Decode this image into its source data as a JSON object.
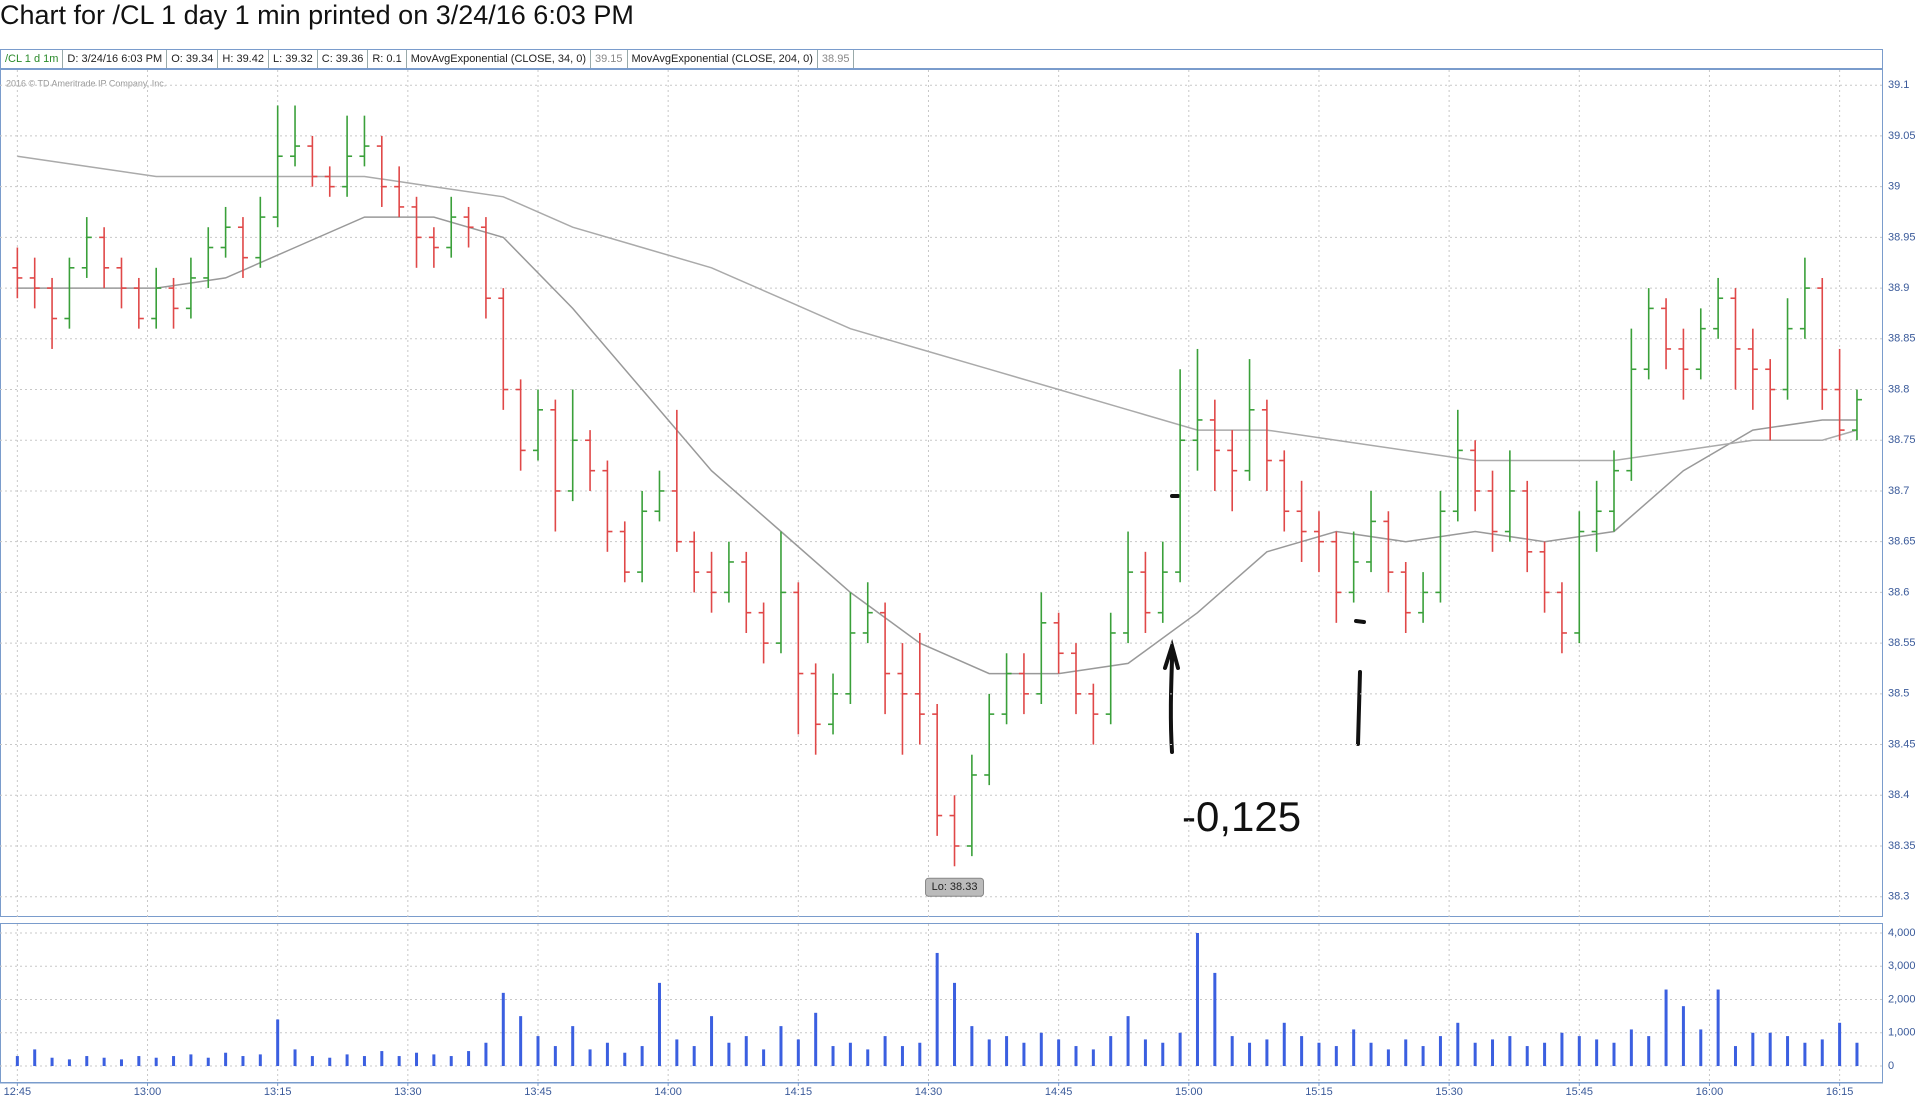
{
  "chart_data": [
    {
      "type": "ohlc",
      "title": "Chart for /CL 1 day 1 min printed on 3/24/16 6:03 PM",
      "info": [
        "/CL 1 d 1m",
        "D: 3/24/16 6:03 PM",
        "O: 39.34",
        "H: 39.42",
        "L: 39.32",
        "C: 39.36",
        "R: 0.1"
      ],
      "copyright": "2016 © TD Ameritrade IP Company, Inc.",
      "low_label": "Lo: 38.33",
      "annotation": "-0,125",
      "up_color": "#3aa03a",
      "down_color": "#e04848",
      "open": [
        38.92,
        38.91,
        38.9,
        38.87,
        38.92,
        38.95,
        38.92,
        38.9,
        38.87,
        38.9,
        38.88,
        38.91,
        38.94,
        38.96,
        38.93,
        38.97,
        39.03,
        39.04,
        39.01,
        39.0,
        39.03,
        39.04,
        39.0,
        38.98,
        38.95,
        38.94,
        38.97,
        38.96,
        38.89,
        38.8,
        38.74,
        38.78,
        38.7,
        38.75,
        38.72,
        38.66,
        38.62,
        38.68,
        38.7,
        38.65,
        38.62,
        38.6,
        38.63,
        38.58,
        38.55,
        38.6,
        38.52,
        38.47,
        38.5,
        38.56,
        38.58,
        38.52,
        38.5,
        38.48,
        38.38,
        38.35,
        38.42,
        38.48,
        38.52,
        38.5,
        38.57,
        38.54,
        38.5,
        38.48,
        38.56,
        38.62,
        38.58,
        38.62,
        38.75,
        38.77,
        38.74,
        38.72,
        38.78,
        38.73,
        38.68,
        38.66,
        38.65,
        38.6,
        38.63,
        38.67,
        38.62,
        38.58,
        38.6,
        38.68,
        38.74,
        38.7,
        38.66,
        38.7,
        38.64,
        38.6,
        38.56,
        38.66,
        38.68,
        38.72,
        38.82,
        38.88,
        38.84,
        38.82,
        38.86,
        38.89,
        38.84,
        38.82,
        38.8,
        38.86,
        38.9,
        38.8,
        38.76
      ],
      "high": [
        38.94,
        38.93,
        38.91,
        38.93,
        38.97,
        38.96,
        38.93,
        38.91,
        38.92,
        38.91,
        38.93,
        38.96,
        38.98,
        38.97,
        38.99,
        39.08,
        39.08,
        39.05,
        39.02,
        39.07,
        39.07,
        39.05,
        39.02,
        38.99,
        38.96,
        38.99,
        38.98,
        38.97,
        38.9,
        38.81,
        38.8,
        38.79,
        38.8,
        38.76,
        38.73,
        38.67,
        38.7,
        38.72,
        38.78,
        38.66,
        38.64,
        38.65,
        38.64,
        38.59,
        38.66,
        38.61,
        38.53,
        38.52,
        38.6,
        38.61,
        38.59,
        38.55,
        38.56,
        38.49,
        38.4,
        38.44,
        38.5,
        38.54,
        38.54,
        38.6,
        38.58,
        38.55,
        38.51,
        38.58,
        38.66,
        38.64,
        38.65,
        38.82,
        38.84,
        38.79,
        38.76,
        38.83,
        38.79,
        38.74,
        38.71,
        38.68,
        38.66,
        38.66,
        38.7,
        38.68,
        38.63,
        38.62,
        38.7,
        38.78,
        38.75,
        38.72,
        38.74,
        38.71,
        38.65,
        38.61,
        38.68,
        38.71,
        38.74,
        38.86,
        38.9,
        38.89,
        38.86,
        38.88,
        38.91,
        38.9,
        38.86,
        38.83,
        38.89,
        38.93,
        38.91,
        38.84,
        38.8
      ],
      "low": [
        38.89,
        38.88,
        38.84,
        38.86,
        38.91,
        38.9,
        38.88,
        38.86,
        38.86,
        38.86,
        38.87,
        38.9,
        38.93,
        38.91,
        38.92,
        38.96,
        39.02,
        39.0,
        38.99,
        38.99,
        39.02,
        38.98,
        38.97,
        38.92,
        38.92,
        38.93,
        38.94,
        38.87,
        38.78,
        38.72,
        38.73,
        38.66,
        38.69,
        38.7,
        38.64,
        38.61,
        38.61,
        38.67,
        38.64,
        38.6,
        38.58,
        38.59,
        38.56,
        38.53,
        38.54,
        38.46,
        38.44,
        38.46,
        38.49,
        38.55,
        38.48,
        38.44,
        38.45,
        38.36,
        38.33,
        38.34,
        38.41,
        38.47,
        38.48,
        38.49,
        38.52,
        38.48,
        38.45,
        38.47,
        38.55,
        38.56,
        38.57,
        38.61,
        38.72,
        38.7,
        38.68,
        38.71,
        38.7,
        38.66,
        38.63,
        38.62,
        38.57,
        38.59,
        38.62,
        38.6,
        38.56,
        38.57,
        38.59,
        38.67,
        38.68,
        38.64,
        38.65,
        38.62,
        38.58,
        38.54,
        38.55,
        38.64,
        38.66,
        38.71,
        38.81,
        38.82,
        38.79,
        38.81,
        38.85,
        38.8,
        38.78,
        38.75,
        38.79,
        38.85,
        38.78,
        38.75,
        38.75
      ],
      "close": [
        38.91,
        38.9,
        38.87,
        38.92,
        38.95,
        38.92,
        38.9,
        38.87,
        38.9,
        38.88,
        38.91,
        38.94,
        38.96,
        38.93,
        38.97,
        39.03,
        39.04,
        39.01,
        39.0,
        39.03,
        39.04,
        39.0,
        38.98,
        38.95,
        38.94,
        38.97,
        38.96,
        38.89,
        38.8,
        38.74,
        38.78,
        38.7,
        38.75,
        38.72,
        38.66,
        38.62,
        38.68,
        38.7,
        38.65,
        38.62,
        38.6,
        38.63,
        38.58,
        38.55,
        38.6,
        38.52,
        38.47,
        38.5,
        38.56,
        38.58,
        38.52,
        38.5,
        38.48,
        38.38,
        38.35,
        38.42,
        38.48,
        38.52,
        38.5,
        38.57,
        38.54,
        38.5,
        38.48,
        38.56,
        38.62,
        38.58,
        38.62,
        38.75,
        38.77,
        38.74,
        38.72,
        38.78,
        38.73,
        38.68,
        38.66,
        38.65,
        38.6,
        38.63,
        38.67,
        38.62,
        38.58,
        38.6,
        38.68,
        38.74,
        38.7,
        38.66,
        38.7,
        38.64,
        38.6,
        38.56,
        38.66,
        38.68,
        38.72,
        38.82,
        38.88,
        38.84,
        38.82,
        38.86,
        38.89,
        38.84,
        38.82,
        38.8,
        38.86,
        38.9,
        38.8,
        38.76,
        38.79
      ],
      "moving_averages": [
        {
          "name": "MovAvgExponential (CLOSE, 34, 0)",
          "last_label": "39.15",
          "color": "#999999",
          "x": [
            0,
            4,
            8,
            12,
            16,
            20,
            24,
            28,
            32,
            36,
            40,
            44,
            48,
            52,
            56,
            60,
            64,
            68,
            72,
            76,
            80,
            84,
            88,
            92,
            96,
            100,
            104,
            106
          ],
          "values": [
            38.9,
            38.9,
            38.9,
            38.91,
            38.94,
            38.97,
            38.97,
            38.95,
            38.88,
            38.8,
            38.72,
            38.66,
            38.6,
            38.55,
            38.52,
            38.52,
            38.53,
            38.58,
            38.64,
            38.66,
            38.65,
            38.66,
            38.65,
            38.66,
            38.72,
            38.76,
            38.77,
            38.77
          ]
        },
        {
          "name": "MovAvgExponential (CLOSE, 204, 0)",
          "last_label": "38.95",
          "color": "#aaaaaa",
          "x": [
            0,
            4,
            8,
            12,
            16,
            20,
            24,
            28,
            32,
            36,
            40,
            44,
            48,
            52,
            56,
            60,
            64,
            68,
            72,
            76,
            80,
            84,
            88,
            92,
            96,
            100,
            104,
            106
          ],
          "values": [
            39.03,
            39.02,
            39.01,
            39.01,
            39.01,
            39.01,
            39.0,
            38.99,
            38.96,
            38.94,
            38.92,
            38.89,
            38.86,
            38.84,
            38.82,
            38.8,
            38.78,
            38.76,
            38.76,
            38.75,
            38.74,
            38.73,
            38.73,
            38.73,
            38.74,
            38.75,
            38.75,
            38.76
          ]
        }
      ],
      "xlim": [
        -1,
        107.5
      ],
      "ylim": [
        38.28,
        39.115
      ],
      "yticks": [
        39.1,
        39.05,
        39,
        38.95,
        38.9,
        38.85,
        38.8,
        38.75,
        38.7,
        38.65,
        38.6,
        38.55,
        38.5,
        38.45,
        38.4,
        38.35,
        38.3
      ],
      "xticks": [
        {
          "value": 0,
          "label": "12:45"
        },
        {
          "value": 7.5,
          "label": "13:00"
        },
        {
          "value": 15,
          "label": "13:15"
        },
        {
          "value": 22.5,
          "label": "13:30"
        },
        {
          "value": 30,
          "label": "13:45"
        },
        {
          "value": 37.5,
          "label": "14:00"
        },
        {
          "value": 45,
          "label": "14:15"
        },
        {
          "value": 52.5,
          "label": "14:30"
        },
        {
          "value": 60,
          "label": "14:45"
        },
        {
          "value": 67.5,
          "label": "15:00"
        },
        {
          "value": 75,
          "label": "15:15"
        },
        {
          "value": 82.5,
          "label": "15:30"
        },
        {
          "value": 90,
          "label": "15:45"
        },
        {
          "value": 97.5,
          "label": "16:00"
        },
        {
          "value": 105,
          "label": "16:15"
        }
      ],
      "grid": true
    },
    {
      "type": "bar",
      "color": "#3b5fe0",
      "values": [
        300,
        500,
        250,
        200,
        300,
        250,
        200,
        300,
        250,
        300,
        350,
        250,
        400,
        300,
        350,
        1400,
        500,
        300,
        250,
        350,
        300,
        450,
        300,
        400,
        350,
        300,
        450,
        700,
        2200,
        1500,
        900,
        600,
        1200,
        500,
        700,
        400,
        600,
        2500,
        800,
        600,
        1500,
        700,
        900,
        500,
        1200,
        800,
        1600,
        600,
        700,
        500,
        900,
        600,
        700,
        3400,
        2500,
        1200,
        800,
        900,
        700,
        1000,
        800,
        600,
        500,
        900,
        1500,
        800,
        700,
        1000,
        4000,
        2800,
        900,
        700,
        800,
        1300,
        900,
        700,
        600,
        1100,
        700,
        500,
        800,
        600,
        900,
        1300,
        700,
        800,
        900,
        600,
        700,
        1000,
        900,
        800,
        700,
        1100,
        900,
        2300,
        1800,
        1100,
        2300,
        600,
        1000,
        1000,
        900,
        700,
        800,
        1300,
        700
      ],
      "xlim": [
        -1,
        107.5
      ],
      "ylim": [
        -480,
        4270
      ],
      "yticks": [
        {
          "value": 4000,
          "label": "4,000"
        },
        {
          "value": 3000,
          "label": "3,000"
        },
        {
          "value": 2000,
          "label": "2,000"
        },
        {
          "value": 1000,
          "label": "1,000"
        },
        0
      ],
      "grid": true
    }
  ]
}
